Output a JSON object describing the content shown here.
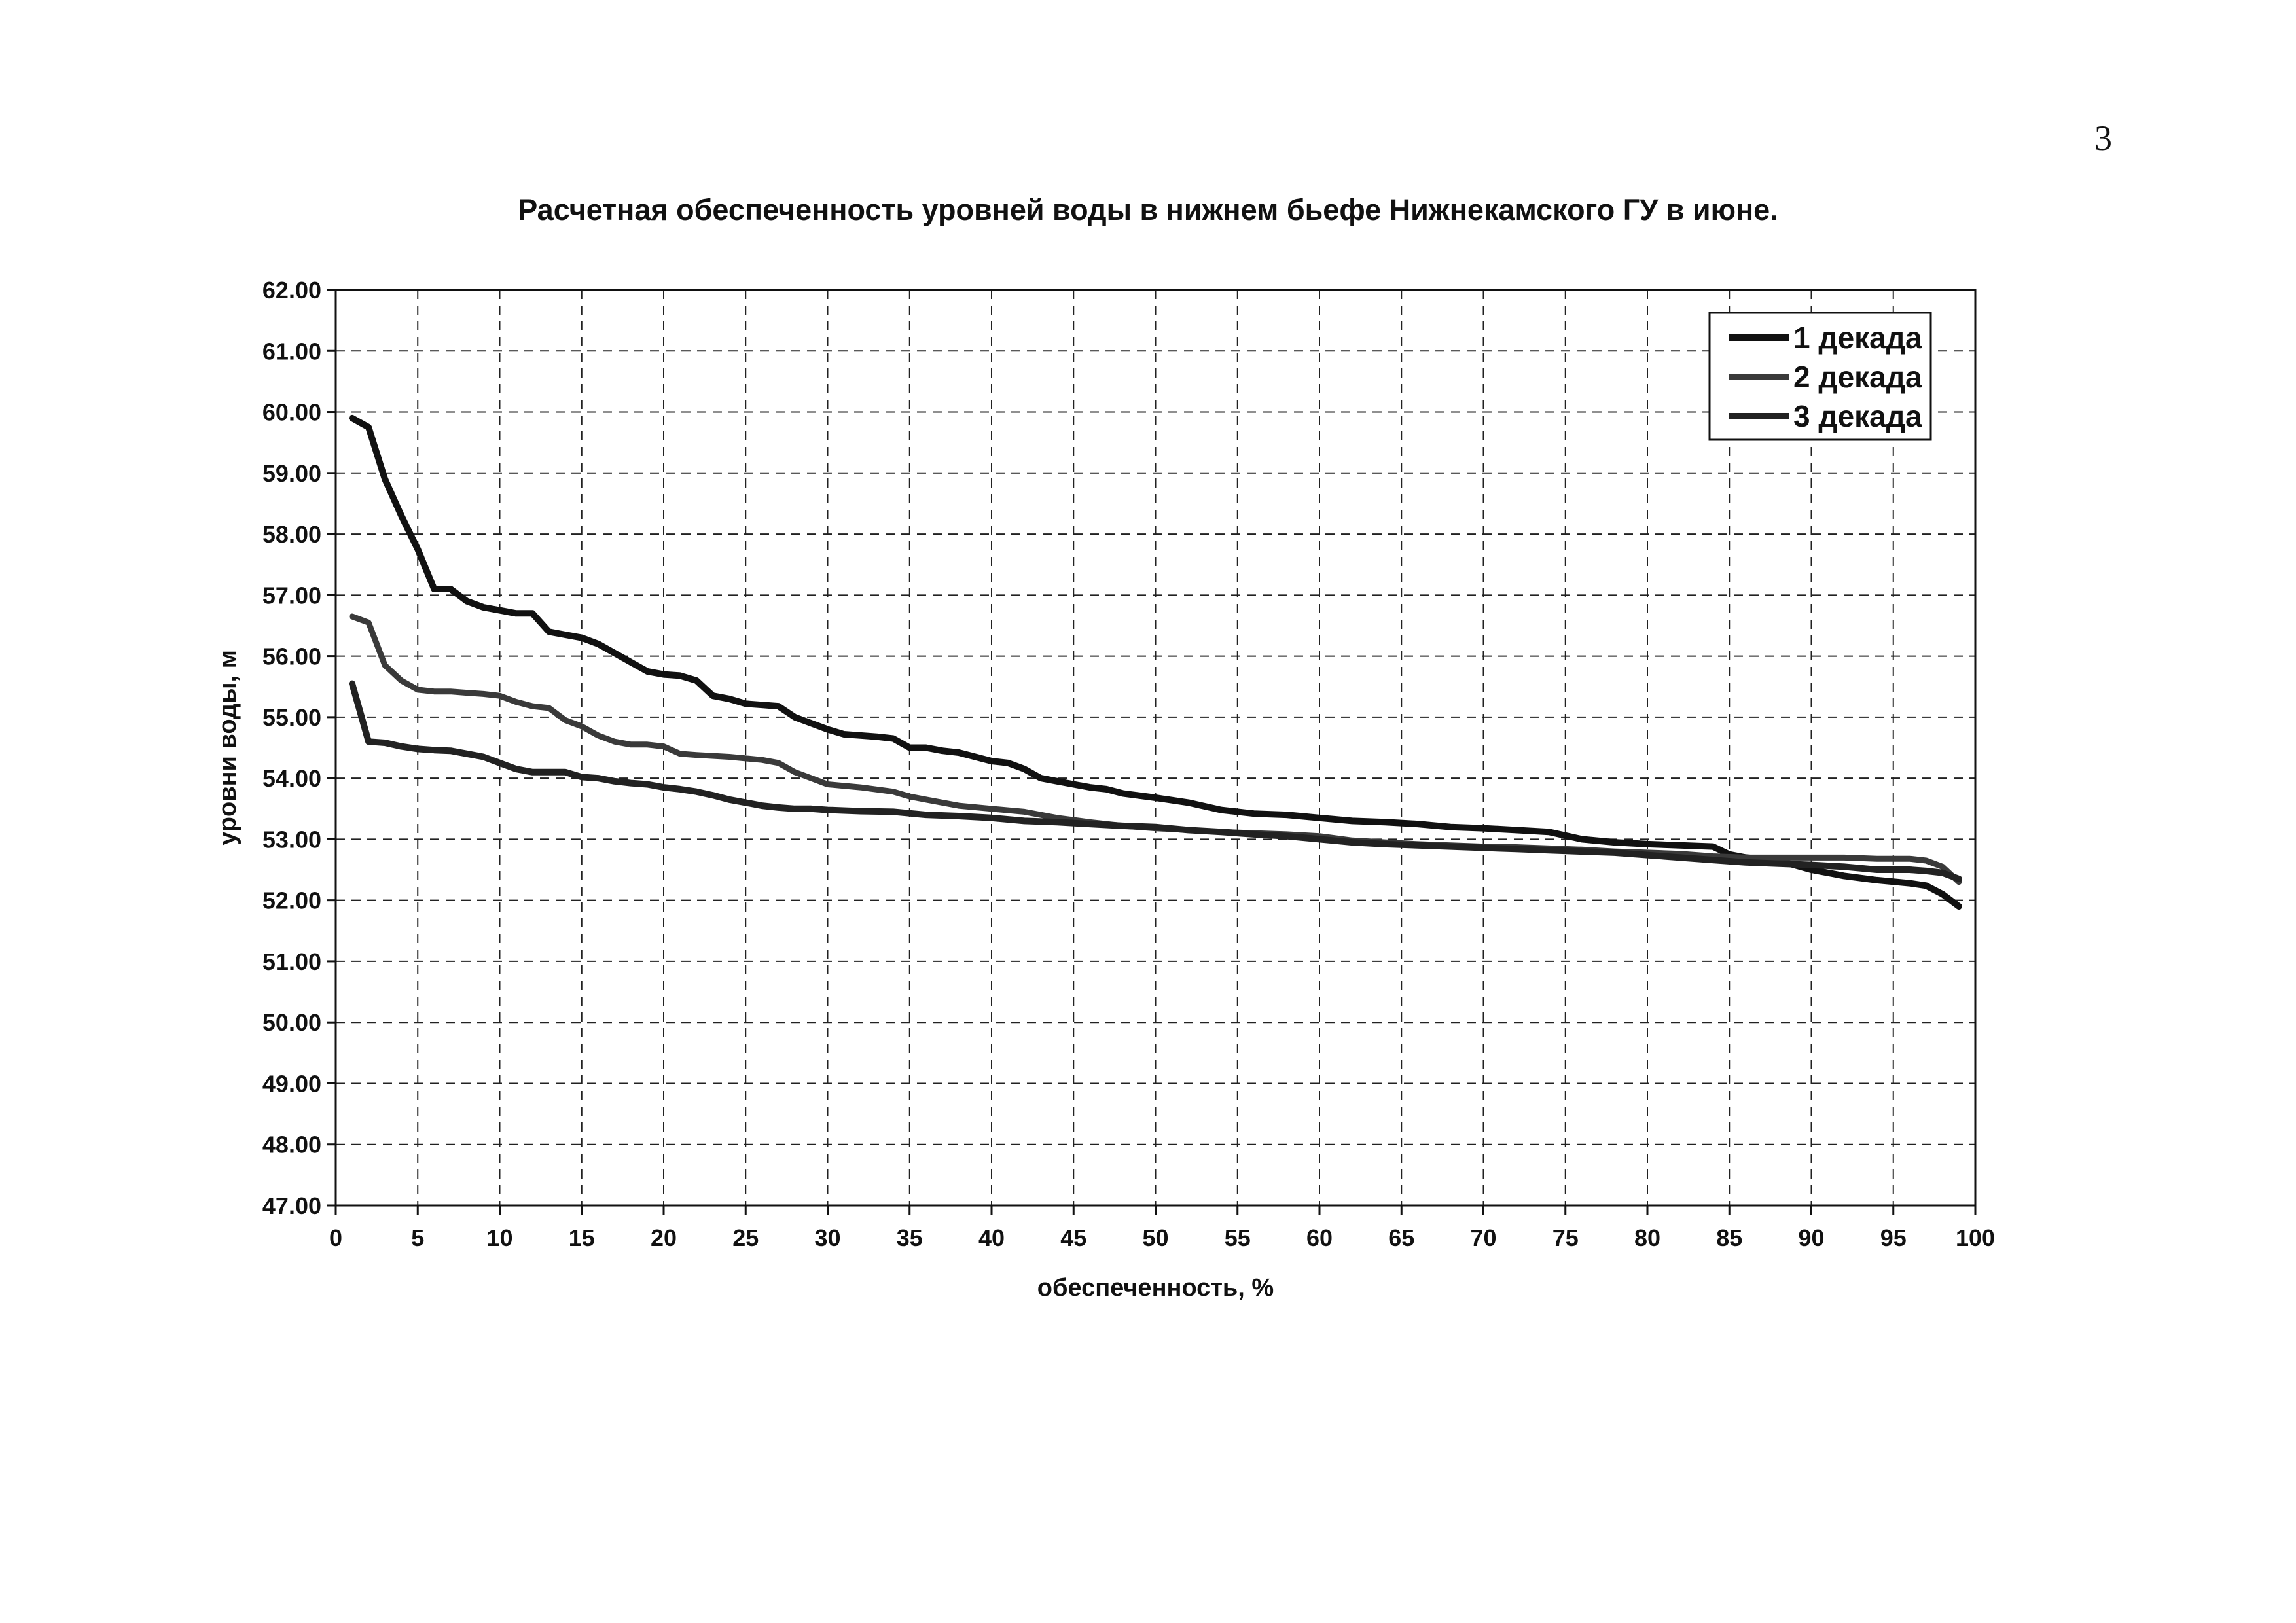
{
  "page_number": "3",
  "chart_data": {
    "type": "line",
    "title": "Расчетная обеспеченность уровней воды в нижнем бьефе Нижнекамского ГУ в июне.",
    "xlabel": "обеспеченность, %",
    "ylabel": "уровни воды, м",
    "xlim": [
      0,
      100
    ],
    "ylim": [
      47,
      62
    ],
    "x_ticks": [
      "0",
      "5",
      "10",
      "15",
      "20",
      "25",
      "30",
      "35",
      "40",
      "45",
      "50",
      "55",
      "60",
      "65",
      "70",
      "75",
      "80",
      "85",
      "90",
      "95",
      "100"
    ],
    "y_ticks": [
      "47.00",
      "48.00",
      "49.00",
      "50.00",
      "51.00",
      "52.00",
      "53.00",
      "54.00",
      "55.00",
      "56.00",
      "57.00",
      "58.00",
      "59.00",
      "60.00",
      "61.00",
      "62.00"
    ],
    "grid": true,
    "legend_position": "top-right",
    "series": [
      {
        "name": "1 декада",
        "color": "#111111",
        "x": [
          1,
          2,
          3,
          4,
          5,
          6,
          7,
          8,
          9,
          10,
          11,
          12,
          13,
          14,
          15,
          16,
          17,
          18,
          19,
          20,
          21,
          22,
          23,
          24,
          25,
          26,
          27,
          28,
          29,
          30,
          31,
          32,
          33,
          34,
          35,
          36,
          37,
          38,
          39,
          40,
          41,
          42,
          43,
          44,
          45,
          46,
          47,
          48,
          50,
          52,
          54,
          56,
          58,
          60,
          62,
          64,
          66,
          68,
          70,
          72,
          74,
          76,
          78,
          80,
          82,
          84,
          85,
          86,
          88,
          90,
          92,
          94,
          96,
          97,
          98,
          99
        ],
        "y": [
          59.9,
          59.75,
          58.9,
          58.3,
          57.75,
          57.1,
          57.1,
          56.9,
          56.8,
          56.75,
          56.7,
          56.7,
          56.4,
          56.35,
          56.3,
          56.2,
          56.05,
          55.9,
          55.75,
          55.7,
          55.68,
          55.6,
          55.35,
          55.3,
          55.22,
          55.2,
          55.18,
          55.0,
          54.9,
          54.8,
          54.72,
          54.7,
          54.68,
          54.65,
          54.5,
          54.5,
          54.45,
          54.42,
          54.35,
          54.28,
          54.25,
          54.15,
          54.0,
          53.95,
          53.9,
          53.85,
          53.82,
          53.75,
          53.68,
          53.6,
          53.48,
          53.42,
          53.4,
          53.35,
          53.3,
          53.28,
          53.25,
          53.2,
          53.18,
          53.15,
          53.12,
          53.0,
          52.95,
          52.92,
          52.9,
          52.88,
          52.75,
          52.7,
          52.65,
          52.5,
          52.4,
          52.33,
          52.28,
          52.24,
          52.1,
          51.9
        ]
      },
      {
        "name": "2 декада",
        "color": "#3a3a3a",
        "x": [
          1,
          2,
          3,
          4,
          5,
          6,
          7,
          8,
          9,
          10,
          11,
          12,
          13,
          14,
          15,
          16,
          17,
          18,
          19,
          20,
          21,
          22,
          24,
          26,
          27,
          28,
          29,
          30,
          32,
          34,
          35,
          36,
          37,
          38,
          40,
          42,
          44,
          46,
          48,
          50,
          52,
          54,
          56,
          58,
          60,
          62,
          64,
          66,
          68,
          70,
          72,
          74,
          76,
          78,
          80,
          82,
          84,
          86,
          88,
          90,
          92,
          94,
          96,
          97,
          98,
          99
        ],
        "y": [
          56.65,
          56.55,
          55.85,
          55.6,
          55.45,
          55.42,
          55.42,
          55.4,
          55.38,
          55.35,
          55.25,
          55.18,
          55.15,
          54.95,
          54.85,
          54.7,
          54.6,
          54.55,
          54.55,
          54.52,
          54.4,
          54.38,
          54.35,
          54.3,
          54.25,
          54.1,
          54.0,
          53.9,
          53.85,
          53.78,
          53.7,
          53.65,
          53.6,
          53.55,
          53.5,
          53.45,
          53.35,
          53.28,
          53.22,
          53.18,
          53.15,
          53.12,
          53.1,
          53.08,
          53.05,
          52.98,
          52.95,
          52.92,
          52.9,
          52.88,
          52.87,
          52.85,
          52.83,
          52.8,
          52.78,
          52.76,
          52.72,
          52.7,
          52.7,
          52.7,
          52.7,
          52.68,
          52.68,
          52.65,
          52.55,
          52.3
        ]
      },
      {
        "name": "3 декада",
        "color": "#222222",
        "x": [
          1,
          2,
          3,
          4,
          5,
          6,
          7,
          8,
          9,
          10,
          11,
          12,
          13,
          14,
          15,
          16,
          17,
          18,
          19,
          20,
          21,
          22,
          23,
          24,
          25,
          26,
          27,
          28,
          29,
          30,
          32,
          34,
          36,
          38,
          40,
          42,
          44,
          46,
          48,
          50,
          52,
          54,
          56,
          58,
          60,
          62,
          64,
          66,
          68,
          70,
          72,
          74,
          76,
          78,
          80,
          82,
          84,
          86,
          88,
          90,
          92,
          94,
          96,
          97,
          98,
          99
        ],
        "y": [
          55.55,
          54.6,
          54.58,
          54.52,
          54.48,
          54.46,
          54.45,
          54.4,
          54.35,
          54.25,
          54.15,
          54.1,
          54.1,
          54.1,
          54.02,
          54.0,
          53.95,
          53.92,
          53.9,
          53.85,
          53.82,
          53.78,
          53.72,
          53.65,
          53.6,
          53.55,
          53.52,
          53.5,
          53.5,
          53.48,
          53.46,
          53.45,
          53.4,
          53.38,
          53.35,
          53.3,
          53.28,
          53.25,
          53.22,
          53.2,
          53.15,
          53.12,
          53.08,
          53.05,
          53.0,
          52.95,
          52.92,
          52.9,
          52.88,
          52.86,
          52.84,
          52.82,
          52.8,
          52.78,
          52.74,
          52.7,
          52.66,
          52.62,
          52.6,
          52.58,
          52.55,
          52.5,
          52.5,
          52.48,
          52.45,
          52.35
        ]
      }
    ]
  }
}
